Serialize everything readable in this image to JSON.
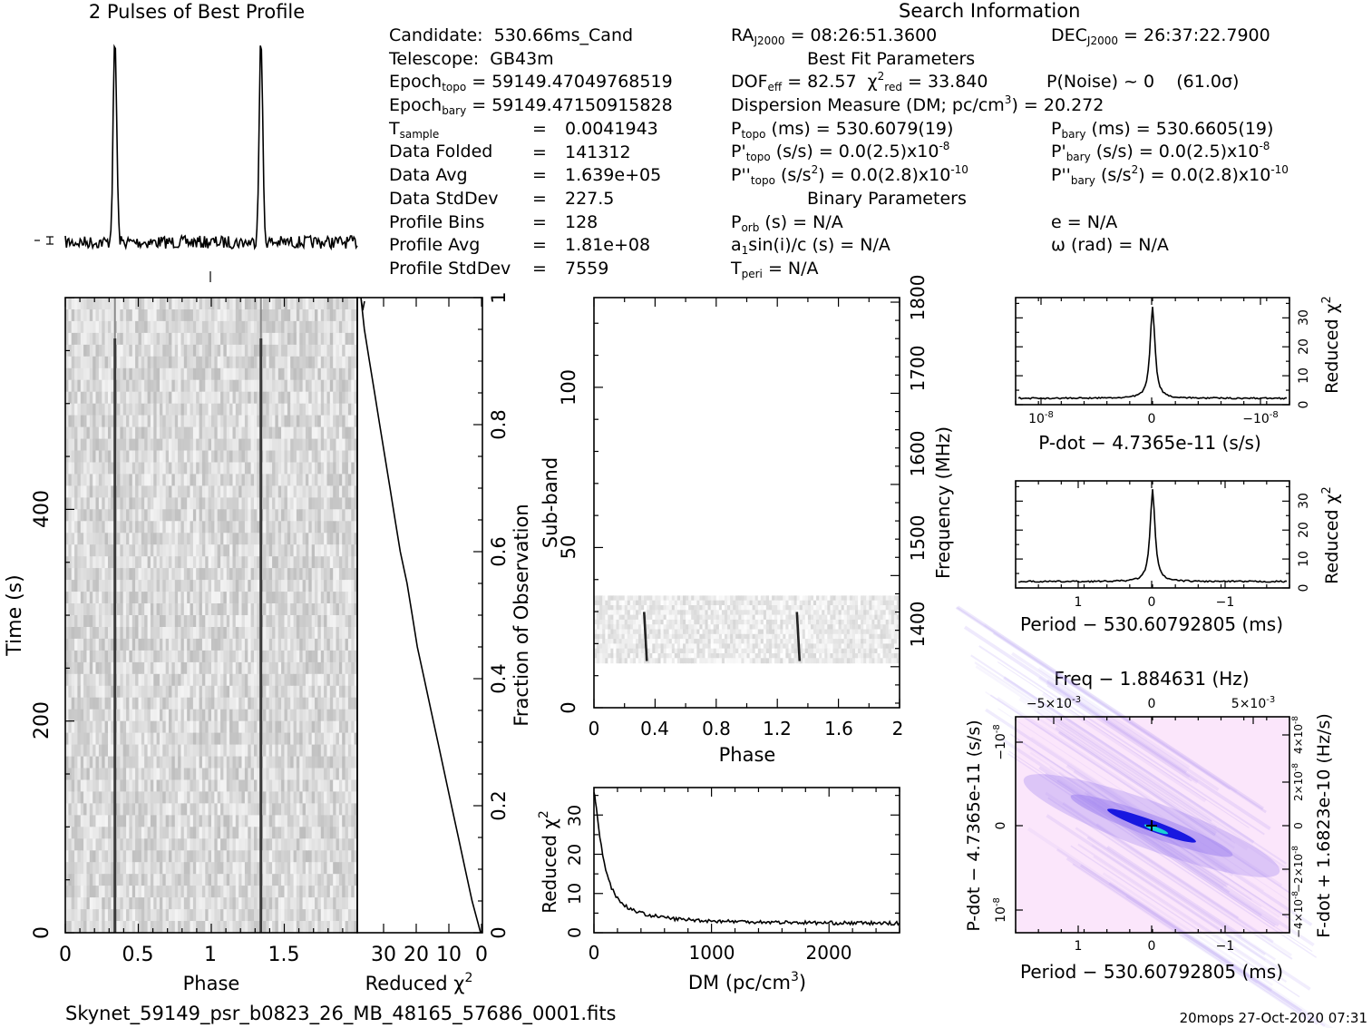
{
  "header": {
    "profile_title": "2 Pulses of Best Profile",
    "search_title": "Search Information",
    "best_fit_title": "Best Fit Parameters",
    "binary_title": "Binary Parameters"
  },
  "search": {
    "candidate_label": "Candidate:",
    "candidate": "530.66ms_Cand",
    "telescope_label": "Telescope:",
    "telescope": "GB43m",
    "epoch_topo_label": "Epoch",
    "epoch_topo_sub": "topo",
    "epoch_topo": "= 59149.47049768519",
    "epoch_bary_label": "Epoch",
    "epoch_bary_sub": "bary",
    "epoch_bary": "= 59149.47150915828",
    "tsample_label": "T",
    "tsample_sub": "sample",
    "tsample": "0.0041943",
    "folded_label": "Data Folded",
    "folded": "141312",
    "avg_label": "Data Avg",
    "avg": "1.639e+05",
    "std_label": "Data StdDev",
    "std": "227.5",
    "bins_label": "Profile Bins",
    "bins": "128",
    "pavg_label": "Profile Avg",
    "pavg": "1.81e+08",
    "pstd_label": "Profile StdDev",
    "pstd": "7559",
    "eq": "="
  },
  "bestfit": {
    "ra": "RA",
    "ra_sub": "J2000",
    "ra_val": "= 08:26:51.3600",
    "dec": "DEC",
    "dec_sub": "J2000",
    "dec_val": "= 26:37:22.7900",
    "dof": "DOF",
    "dof_sub": "eff",
    "dof_val": "= 82.57",
    "chi": "χ",
    "chi_sup": "2",
    "chi_sub": "red",
    "chi_val": "= 33.840",
    "pnoise": "P(Noise) ~ 0",
    "sigma": "(61.0σ)",
    "dm_text": "Dispersion Measure (DM; pc/cm",
    "dm_sup": "3",
    "dm_val": ") = 20.272",
    "ptopo": "P",
    "ptopo_sub": "topo",
    "ptopo_val": "(ms) =  530.6079(19)",
    "pbary": "P",
    "pbary_sub": "bary",
    "pbary_val": "(ms) =  530.6605(19)",
    "pdtopo": "P'",
    "pdtopo_sub": "topo",
    "pdtopo_val": "(s/s) = 0.0(2.5)x10",
    "pdtopo_sup": "-8",
    "pdbary": "P'",
    "pdbary_sub": "bary",
    "pdbary_val": "(s/s) = 0.0(2.5)x10",
    "pdbary_sup": "-8",
    "pddtopo": "P''",
    "pddtopo_sub": "topo",
    "pddtopo_val1": "(s/s",
    "pddtopo_sup1": "2",
    "pddtopo_val2": ") = 0.0(2.8)x10",
    "pddtopo_sup2": "-10",
    "pddbary": "P''",
    "pddbary_sub": "bary",
    "pddbary_val1": "(s/s",
    "pddbary_sup1": "2",
    "pddbary_val2": ") = 0.0(2.8)x10",
    "pddbary_sup2": "-10"
  },
  "binary": {
    "porb": "P",
    "porb_sub": "orb",
    "porb_val": "(s) = N/A",
    "ecc": "e = N/A",
    "a1": "a",
    "a1_sub": "1",
    "a1_val": "sin(i)/c (s) = N/A",
    "omega": "ω (rad) = N/A",
    "tperi": "T",
    "tperi_sub": "peri",
    "tperi_val": "= N/A"
  },
  "footer": {
    "filename": "Skynet_59149_psr_b0823_26_MB_48165_57686_0001.fits",
    "stamp": "20mops 27-Oct-2020 07:31"
  },
  "chart_data": [
    {
      "name": "profile",
      "type": "line",
      "title": "2 Pulses of Best Profile",
      "x": [
        0,
        2
      ],
      "peaks_at_phase": [
        0.34,
        1.34
      ]
    },
    {
      "name": "time_phase",
      "type": "heatmap",
      "xlabel": "Phase",
      "ylabel": "Time (s)",
      "xlim": [
        0,
        2
      ],
      "ylim": [
        0,
        600
      ],
      "xticks": [
        "0",
        "0.5",
        "1",
        "1.5"
      ],
      "yticks": [
        "0",
        "200",
        "400"
      ],
      "pulse_phases": [
        0.34,
        1.34
      ]
    },
    {
      "name": "time_chi2",
      "type": "line",
      "xlabel": "Reduced χ",
      "xlabel_sup": "2",
      "ylabel_right": "Fraction of Observation",
      "xticks": [
        "30",
        "20",
        "10",
        "0"
      ],
      "yticks": [
        "0",
        "0.2",
        "0.4",
        "0.6",
        "0.8",
        "1"
      ],
      "x_range": [
        35,
        0
      ],
      "y": [
        0,
        0.05,
        0.1,
        0.15,
        0.2,
        0.25,
        0.3,
        0.35,
        0.4,
        0.45,
        0.5,
        0.55,
        0.6,
        0.65,
        0.7,
        0.75,
        0.8,
        0.85,
        0.9,
        0.95,
        1.0
      ],
      "chi2": [
        0,
        2.5,
        4.5,
        6.5,
        8.5,
        10.5,
        12.5,
        14.5,
        16.5,
        18.5,
        20,
        21.5,
        23.5,
        25,
        26.5,
        28,
        29.5,
        31,
        32.5,
        34,
        35
      ]
    },
    {
      "name": "subband_phase",
      "type": "heatmap",
      "xlabel": "Phase",
      "ylabel": "Sub-band",
      "ylabel_right": "Frequency (MHz)",
      "xlim": [
        0,
        2
      ],
      "ylim": [
        0,
        128
      ],
      "xticks": [
        "0",
        "0.4",
        "0.8",
        "1.2",
        "1.6",
        "2"
      ],
      "yticks": [
        "0",
        "50",
        "100"
      ],
      "freq_ticks": [
        "1400",
        "1500",
        "1600",
        "1700",
        "1800"
      ],
      "freq_range": [
        1355,
        1805
      ],
      "data_band": [
        14,
        35
      ],
      "pulse_phases": [
        0.34,
        1.34
      ]
    },
    {
      "name": "dm_chi2",
      "type": "line",
      "xlabel": "DM (pc/cm",
      "xlabel_sup": "3",
      "xlabel_end": ")",
      "ylabel": "Reduced χ",
      "ylabel_sup": "2",
      "xlim": [
        0,
        2600
      ],
      "ylim": [
        0,
        37
      ],
      "xticks": [
        "0",
        "1000",
        "2000"
      ],
      "yticks": [
        "0",
        "10",
        "20",
        "30"
      ],
      "x": [
        0,
        20,
        50,
        100,
        150,
        200,
        250,
        300,
        400,
        500,
        700,
        1000,
        1500,
        2000,
        2600
      ],
      "y": [
        36,
        32,
        24,
        16,
        11.5,
        8.8,
        7.2,
        6.2,
        5.0,
        4.3,
        3.5,
        3.0,
        2.7,
        2.5,
        2.4
      ]
    },
    {
      "name": "pdot_chi2",
      "type": "line",
      "xlabel": "P-dot − 4.7365e-11 (s/s)",
      "ylabel_right": "Reduced χ",
      "ylabel_sup": "2",
      "yticks": [
        "0",
        "10",
        "20",
        "30"
      ],
      "xticks": [
        "10",
        "0",
        "−10"
      ],
      "xtick_exp": "-8",
      "ylim": [
        0,
        37
      ],
      "peak": 34
    },
    {
      "name": "period_chi2",
      "type": "line",
      "xlabel": "Period − 530.60792805 (ms)",
      "ylabel_right": "Reduced χ",
      "ylabel_sup": "2",
      "yticks": [
        "0",
        "10",
        "20",
        "30"
      ],
      "xticks": [
        "1",
        "0",
        "−1"
      ],
      "ylim": [
        0,
        37
      ],
      "peak": 34
    },
    {
      "name": "p_pdot_plane",
      "type": "heatmap",
      "title": "Freq − 1.884631 (Hz)",
      "xlabel": "Period − 530.60792805 (ms)",
      "ylabel": "P-dot − 4.7365e-11 (s/s)",
      "ylabel_right": "F-dot + 1.6823e-10 (Hz/s)",
      "xticks": [
        "1",
        "0",
        "−1"
      ],
      "top_ticks": [
        "−5×10",
        "0",
        "5×10"
      ],
      "top_exp": "-3",
      "yticks": [
        "−10",
        "0",
        "10"
      ],
      "ytick_exp": "-8",
      "right_ticks": [
        "4×10",
        "2×10",
        "0",
        "−2×10",
        "−4×10"
      ],
      "right_exp": "-8",
      "colors": {
        "low": "#fbe6fb",
        "mid": "#9a7ef0",
        "high": "#1818e0",
        "peak": "#19d2d2"
      }
    }
  ]
}
